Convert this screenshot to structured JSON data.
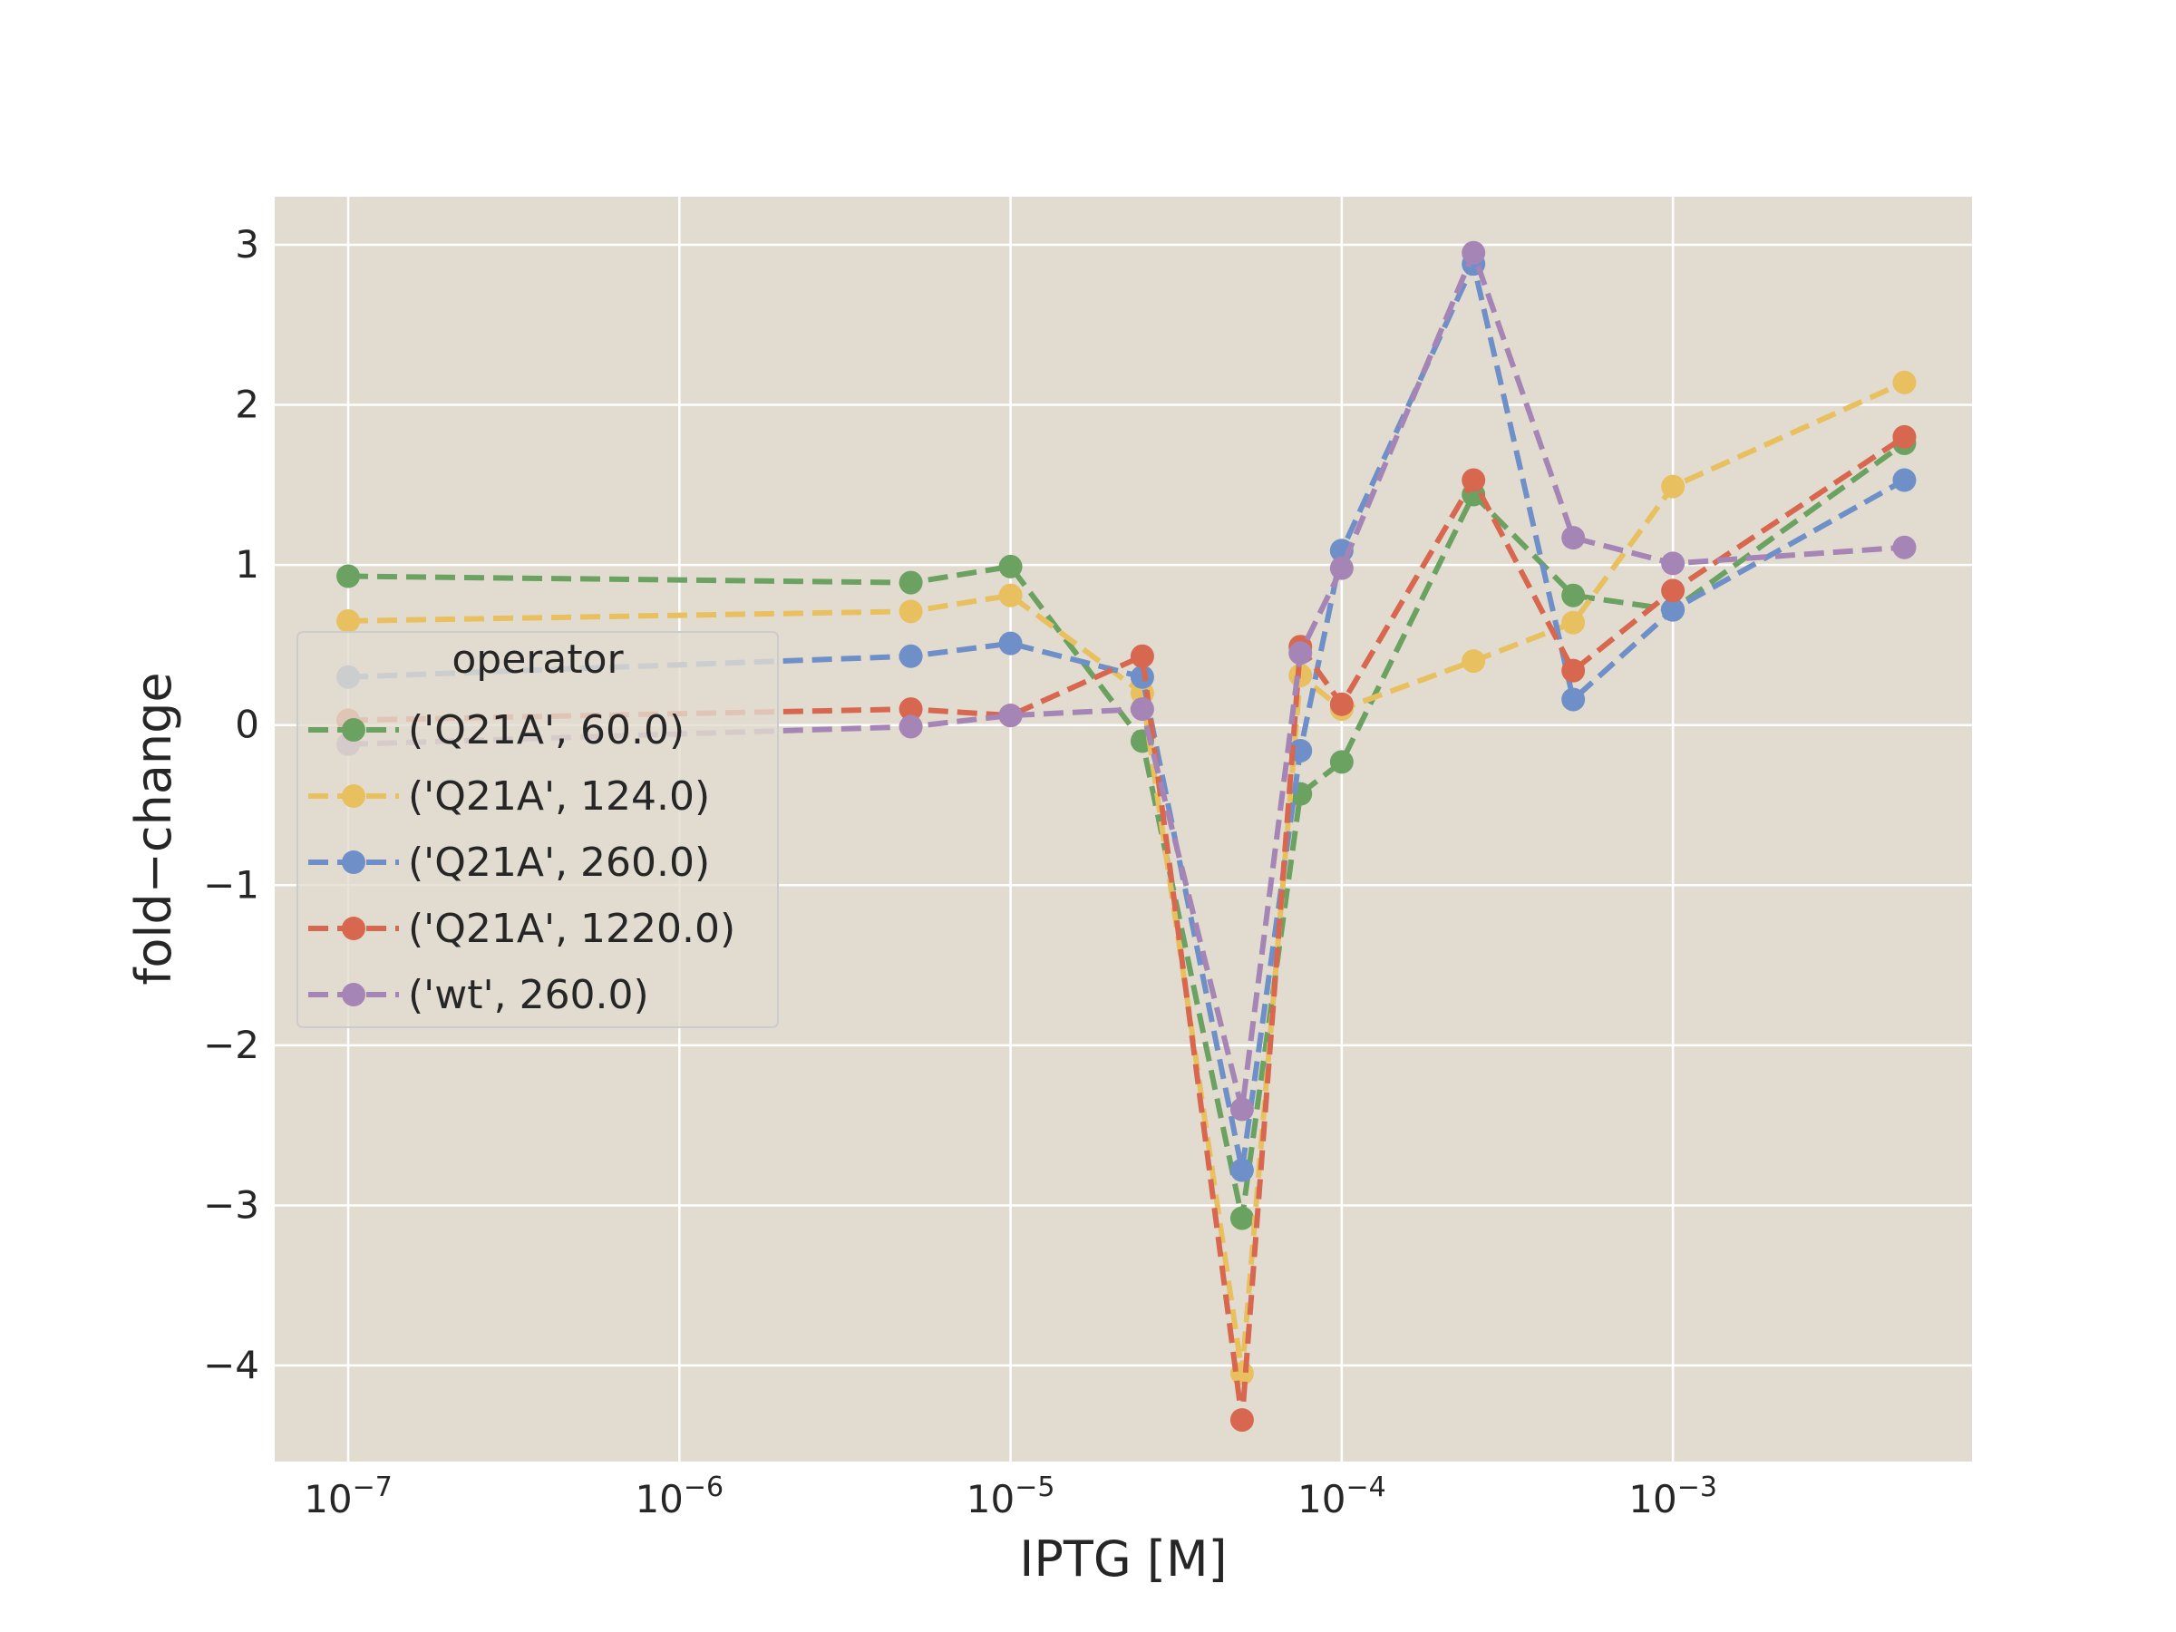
{
  "chart_data": {
    "type": "line",
    "xlabel": "IPTG [M]",
    "ylabel": "fold−change",
    "xscale": "log",
    "xlim": [
      6e-08,
      0.008
    ],
    "ylim": [
      -4.6,
      3.3
    ],
    "grid": true,
    "x_ticks": [
      {
        "value": 1e-07,
        "base": "10",
        "exp": "−7"
      },
      {
        "value": 1e-06,
        "base": "10",
        "exp": "−6"
      },
      {
        "value": 1e-05,
        "base": "10",
        "exp": "−5"
      },
      {
        "value": 0.0001,
        "base": "10",
        "exp": "−4"
      },
      {
        "value": 0.001,
        "base": "10",
        "exp": "−3"
      }
    ],
    "y_ticks": [
      {
        "value": 3,
        "label": "3"
      },
      {
        "value": 2,
        "label": "2"
      },
      {
        "value": 1,
        "label": "1"
      },
      {
        "value": 0,
        "label": "0"
      },
      {
        "value": -1,
        "label": "−1"
      },
      {
        "value": -2,
        "label": "−2"
      },
      {
        "value": -3,
        "label": "−3"
      },
      {
        "value": -4,
        "label": "−4"
      }
    ],
    "x": [
      1e-07,
      5e-06,
      1e-05,
      2.5e-05,
      5e-05,
      7.5e-05,
      0.0001,
      0.00025,
      0.0005,
      0.001,
      0.005
    ],
    "legend": {
      "title": "operator",
      "position": "center-left"
    },
    "series": [
      {
        "name": "('Q21A', 60.0)",
        "color": "#6ba262",
        "values": [
          0.93,
          0.89,
          0.99,
          -0.1,
          -3.08,
          -0.43,
          -0.23,
          1.44,
          0.81,
          0.72,
          1.76
        ]
      },
      {
        "name": "('Q21A', 124.0)",
        "color": "#e8c060",
        "values": [
          0.65,
          0.71,
          0.81,
          0.2,
          -4.05,
          0.31,
          0.1,
          0.4,
          0.64,
          1.49,
          2.14
        ]
      },
      {
        "name": "('Q21A', 260.0)",
        "color": "#6f8fc8",
        "values": [
          0.3,
          0.43,
          0.51,
          0.3,
          -2.78,
          -0.16,
          1.09,
          2.88,
          0.16,
          0.72,
          1.53
        ]
      },
      {
        "name": "('Q21A', 1220.0)",
        "color": "#d8674f",
        "values": [
          0.03,
          0.1,
          0.06,
          0.43,
          -4.34,
          0.49,
          0.13,
          1.53,
          0.34,
          0.84,
          1.8
        ]
      },
      {
        "name": "('wt', 260.0)",
        "color": "#a585b5",
        "values": [
          -0.12,
          -0.01,
          0.06,
          0.1,
          -2.4,
          0.45,
          0.98,
          2.95,
          1.17,
          1.01,
          1.11
        ]
      }
    ]
  }
}
